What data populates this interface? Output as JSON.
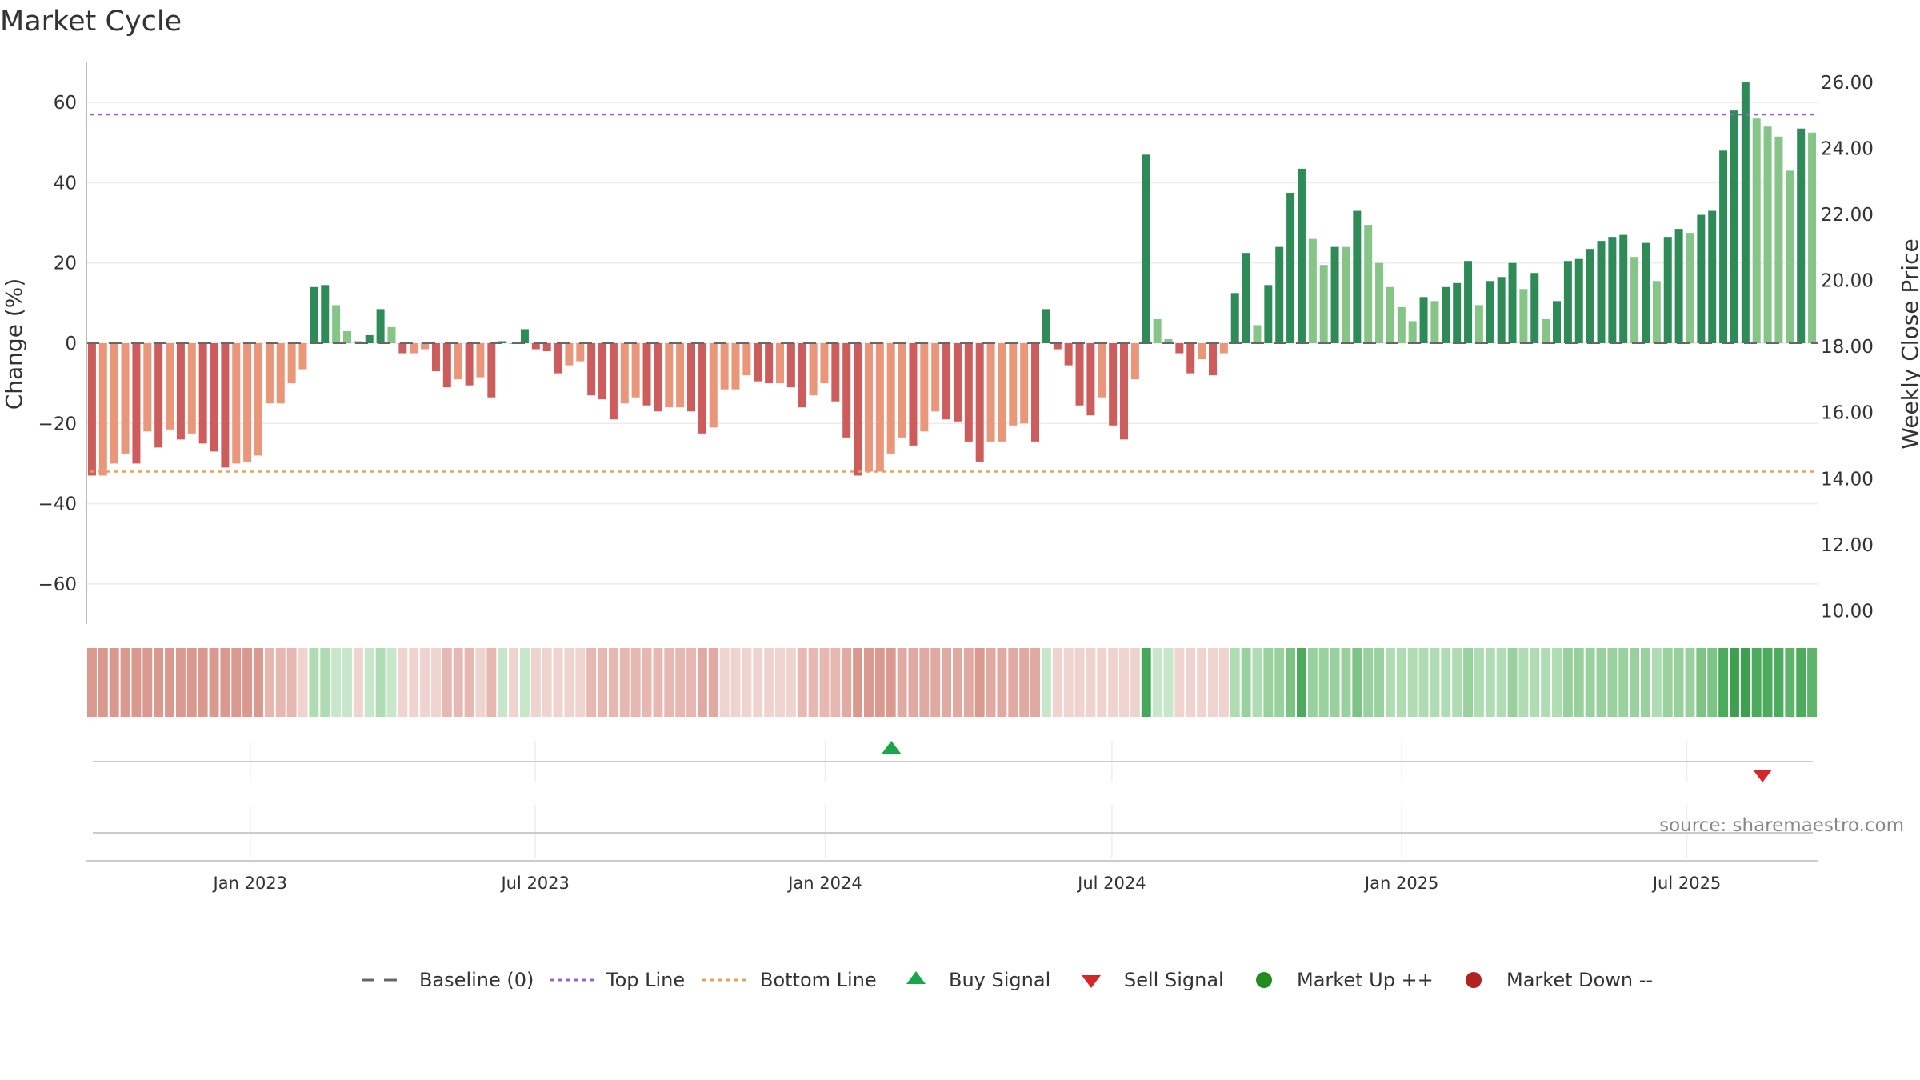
{
  "chart_data": {
    "type": "bar",
    "title": "Market Cycle",
    "ylabel": "Change (%)",
    "y2label": "Weekly Close Price",
    "ylim": [
      -70,
      70
    ],
    "y_ticks": [
      60,
      40,
      20,
      0,
      -20,
      -40,
      -60
    ],
    "y_tick_labels": [
      "60",
      "40",
      "20",
      "0",
      "−20",
      "−40",
      "−60"
    ],
    "y2lim": [
      9.6,
      26.6
    ],
    "y2_ticks": [
      26,
      24,
      22,
      20,
      18,
      16,
      14,
      12,
      10
    ],
    "y2_tick_labels": [
      "26.00",
      "24.00",
      "22.00",
      "20.00",
      "18.00",
      "16.00",
      "14.00",
      "12.00",
      "10.00"
    ],
    "x_start": "2022-09-19",
    "x_end": "2025-09-22",
    "x_tick_dates": [
      "2023-01-01",
      "2023-07-01",
      "2024-01-01",
      "2024-07-01",
      "2025-01-01",
      "2025-07-01"
    ],
    "x_tick_labels": [
      "Jan 2023",
      "Jul 2023",
      "Jan 2024",
      "Jul 2024",
      "Jan 2025",
      "Jul 2025"
    ],
    "top_line": 57,
    "bottom_line": -32,
    "baseline": 0,
    "values": [
      -33,
      -33,
      -30,
      -27.5,
      -30,
      -22,
      -26,
      -21.5,
      -24,
      -22.5,
      -25,
      -27,
      -31,
      -30,
      -29.5,
      -28,
      -15,
      -15,
      -10,
      -6.5,
      14,
      14.5,
      9.5,
      3,
      0.5,
      2,
      8.5,
      4,
      -2.5,
      -2.5,
      -1.5,
      -7,
      -11,
      -9,
      -10.5,
      -8.5,
      -13.5,
      0.5,
      0,
      3.5,
      -1.5,
      -2,
      -7.5,
      -5.5,
      -4.5,
      -13,
      -14,
      -19,
      -15,
      -13.5,
      -15.5,
      -17,
      -16,
      -16,
      -17,
      -22.5,
      -21,
      -11.5,
      -11.5,
      -8,
      -9.5,
      -10,
      -10,
      -11,
      -16,
      -13,
      -10,
      -14.5,
      -23.5,
      -33,
      -32,
      -32,
      -27.5,
      -23.5,
      -25.5,
      -22,
      -17,
      -19,
      -19.5,
      -24.5,
      -29.5,
      -24.5,
      -24.5,
      -20.5,
      -20,
      -24.5,
      8.5,
      -1.5,
      -5.5,
      -15.5,
      -18,
      -13.5,
      -20.5,
      -24,
      -9,
      47,
      6,
      1,
      -2.5,
      -7.5,
      -4,
      -8,
      -2.5,
      12.5,
      22.5,
      4.5,
      14.5,
      24,
      37.5,
      43.5,
      26,
      19.5,
      24,
      24,
      33,
      29.5,
      20,
      14,
      9,
      5.5,
      11.5,
      10.5,
      14,
      15,
      20.5,
      9.5,
      15.5,
      16.5,
      20,
      13.5,
      17.5,
      6,
      10.5,
      20.5,
      21,
      23.5,
      25.5,
      26.5,
      27,
      21.5,
      25,
      15.5,
      26.5,
      28.5,
      27.5,
      32,
      33,
      48,
      58,
      65,
      56,
      54,
      51.5,
      43,
      53.5,
      52.5
    ],
    "strip_colors": [
      "#d9998f",
      "#d9998f",
      "#d9998f",
      "#d9998f",
      "#d9998f",
      "#d9998f",
      "#d9998f",
      "#d9998f",
      "#d9998f",
      "#d9998f",
      "#d9998f",
      "#d9998f",
      "#d9998f",
      "#d9998f",
      "#d9998f",
      "#d9998f",
      "#e7b8b1",
      "#e7b8b1",
      "#e7b8b1",
      "#efd3cf",
      "#b0dcb3",
      "#b0dcb3",
      "#c8e7ca",
      "#c8e7ca",
      "#efd3cf",
      "#c8e7ca",
      "#b0dcb3",
      "#c8e7ca",
      "#efd3cf",
      "#efd3cf",
      "#efd3cf",
      "#efd3cf",
      "#e7b8b1",
      "#e7b8b1",
      "#e7b8b1",
      "#efd3cf",
      "#e7b8b1",
      "#c8e7ca",
      "#efd3cf",
      "#c8e7ca",
      "#efd3cf",
      "#efd3cf",
      "#efd3cf",
      "#efd3cf",
      "#efd3cf",
      "#e7b8b1",
      "#e7b8b1",
      "#e7b8b1",
      "#e7b8b1",
      "#e7b8b1",
      "#e7b8b1",
      "#e7b8b1",
      "#e7b8b1",
      "#e7b8b1",
      "#e7b8b1",
      "#e0aaa2",
      "#e0aaa2",
      "#efd3cf",
      "#efd3cf",
      "#efd3cf",
      "#efd3cf",
      "#efd3cf",
      "#efd3cf",
      "#efd3cf",
      "#e7b8b1",
      "#e7b8b1",
      "#e7b8b1",
      "#e7b8b1",
      "#e0aaa2",
      "#d9998f",
      "#d9998f",
      "#d9998f",
      "#d9998f",
      "#e0aaa2",
      "#e0aaa2",
      "#e0aaa2",
      "#e0aaa2",
      "#e0aaa2",
      "#e0aaa2",
      "#e0aaa2",
      "#d9998f",
      "#e0aaa2",
      "#e0aaa2",
      "#e0aaa2",
      "#e0aaa2",
      "#e0aaa2",
      "#c8e7ca",
      "#efd3cf",
      "#efd3cf",
      "#efd3cf",
      "#efd3cf",
      "#efd3cf",
      "#efd3cf",
      "#efd3cf",
      "#efd3cf",
      "#45a85a",
      "#c8e7ca",
      "#c8e7ca",
      "#efd3cf",
      "#efd3cf",
      "#efd3cf",
      "#efd3cf",
      "#efd3cf",
      "#b0dcb3",
      "#98d19d",
      "#b0dcb3",
      "#98d19d",
      "#98d19d",
      "#7dc384",
      "#4dab5e",
      "#98d19d",
      "#98d19d",
      "#98d19d",
      "#98d19d",
      "#7dc384",
      "#98d19d",
      "#98d19d",
      "#b0dcb3",
      "#b0dcb3",
      "#b0dcb3",
      "#b0dcb3",
      "#b0dcb3",
      "#b0dcb3",
      "#b0dcb3",
      "#98d19d",
      "#b0dcb3",
      "#b0dcb3",
      "#b0dcb3",
      "#98d19d",
      "#b0dcb3",
      "#b0dcb3",
      "#b0dcb3",
      "#b0dcb3",
      "#98d19d",
      "#98d19d",
      "#98d19d",
      "#98d19d",
      "#98d19d",
      "#98d19d",
      "#98d19d",
      "#98d19d",
      "#b0dcb3",
      "#98d19d",
      "#98d19d",
      "#98d19d",
      "#7dc384",
      "#7dc384",
      "#4dab5e",
      "#3e9f51",
      "#3e9f51",
      "#4dab5e",
      "#4dab5e",
      "#4dab5e",
      "#5eb46b",
      "#4dab5e",
      "#5eb46b"
    ],
    "buy_signals": [
      {
        "date": "2024-02-12"
      }
    ],
    "sell_signals": [
      {
        "date": "2025-08-18"
      }
    ],
    "colors": {
      "positive_strong": "#2e8b57",
      "positive_light": "#86c488",
      "negative_strong": "#cd5c5c",
      "negative_light": "#e9967a",
      "top_line": "#9966cc",
      "bottom_line": "#e8a060",
      "buy": "#1ca64c",
      "sell": "#d62728",
      "market_up": "#228b22",
      "market_down": "#b22222"
    },
    "legend": [
      {
        "key": "baseline",
        "label": "Baseline (0)"
      },
      {
        "key": "top",
        "label": "Top Line"
      },
      {
        "key": "bottom",
        "label": "Bottom Line"
      },
      {
        "key": "buy",
        "label": "Buy Signal"
      },
      {
        "key": "sell",
        "label": "Sell Signal"
      },
      {
        "key": "up",
        "label": "Market Up ++"
      },
      {
        "key": "down",
        "label": "Market Down --"
      }
    ],
    "legend_position": "bottom",
    "source": "source: sharemaestro.com"
  }
}
